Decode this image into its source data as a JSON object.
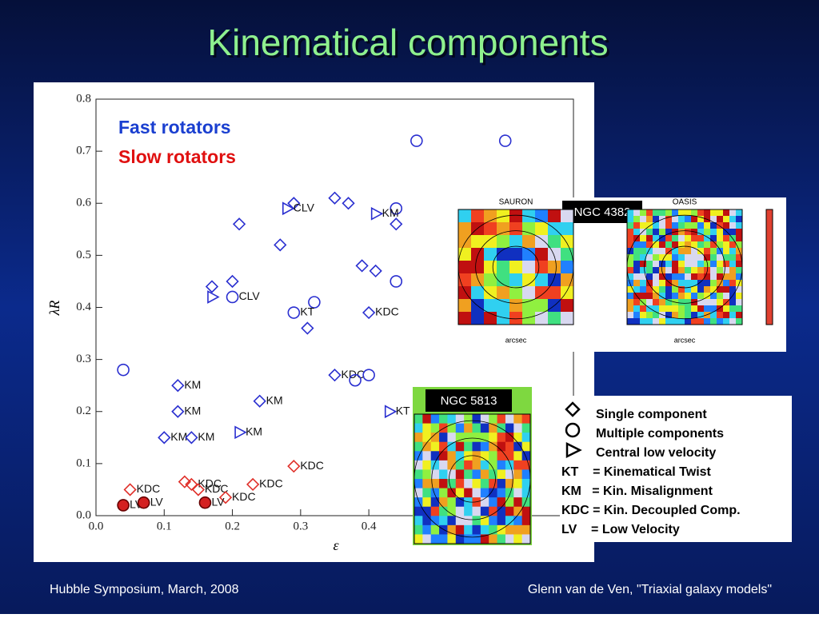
{
  "title": "Kinematical components",
  "footer": {
    "left": "Hubble Symposium, March, 2008",
    "right": "Glenn van de Ven, \"Triaxial galaxy models\""
  },
  "chart_data": {
    "type": "scatter",
    "annotations": [
      "Fast rotators",
      "Slow rotators"
    ],
    "x_label": "ε",
    "y_label": "λR",
    "xlim": [
      0,
      0.7
    ],
    "ylim": [
      0,
      0.8
    ],
    "xticks": [
      {
        "value": 0,
        "label": "0.0"
      },
      0.1,
      0.2,
      0.3,
      0.4
    ],
    "yticks": [
      {
        "value": 0,
        "label": "0.0"
      },
      0.1,
      0.2,
      0.3,
      0.4,
      0.5,
      0.6,
      0.7,
      0.8
    ],
    "series": [
      {
        "name": "Single component",
        "marker": "diamond",
        "color": "#2a2fd0",
        "filled": false,
        "x": [
          0.21,
          0.29,
          0.35,
          0.37,
          0.27,
          0.17,
          0.2,
          0.39,
          0.41,
          0.31,
          0.4,
          0.35,
          0.12,
          0.12,
          0.24,
          0.1,
          0.14,
          0.44
        ],
        "values": [
          0.56,
          0.6,
          0.61,
          0.6,
          0.52,
          0.44,
          0.45,
          0.48,
          0.47,
          0.36,
          0.39,
          0.27,
          0.25,
          0.2,
          0.22,
          0.15,
          0.15,
          0.56
        ],
        "labels": [
          null,
          null,
          null,
          null,
          null,
          null,
          null,
          null,
          null,
          null,
          "KDC",
          "KDC",
          "KM",
          "KM",
          "KM",
          "KM",
          "KM",
          null
        ]
      },
      {
        "name": "Multiple components",
        "marker": "circle",
        "color": "#2a2fd0",
        "filled": false,
        "x": [
          0.47,
          0.6,
          0.44,
          0.44,
          0.32,
          0.29,
          0.2,
          0.04,
          0.38,
          0.4
        ],
        "values": [
          0.72,
          0.72,
          0.59,
          0.45,
          0.41,
          0.39,
          0.42,
          0.28,
          0.26,
          0.27
        ],
        "labels": [
          null,
          null,
          null,
          null,
          null,
          "KT",
          "CLV",
          null,
          null,
          null
        ]
      },
      {
        "name": "Central low velocity",
        "marker": "triangle",
        "color": "#2a2fd0",
        "filled": false,
        "x": [
          0.28,
          0.41,
          0.17,
          0.43,
          0.21
        ],
        "values": [
          0.59,
          0.58,
          0.42,
          0.2,
          0.16
        ],
        "labels": [
          "CLV",
          "KM",
          null,
          "KT",
          "KM"
        ]
      },
      {
        "marker": "diamond",
        "color": "#e0302a",
        "filled": false,
        "x": [
          0.05,
          0.13,
          0.14,
          0.15,
          0.19,
          0.23,
          0.29
        ],
        "values": [
          0.05,
          0.065,
          0.06,
          0.05,
          0.035,
          0.06,
          0.095
        ],
        "labels": [
          "KDC",
          null,
          "KDC",
          "KDC",
          "KDC",
          "KDC",
          "KDC"
        ]
      },
      {
        "marker": "circle",
        "color": "#d42020",
        "filled": true,
        "x": [
          0.04,
          0.07,
          0.16
        ],
        "values": [
          0.02,
          0.025,
          0.025
        ],
        "labels": [
          "LV",
          "LV",
          "LV"
        ]
      }
    ]
  },
  "insets": {
    "ngc4382": {
      "label": "NGC 4382",
      "left": "SAURON",
      "right": "OASIS",
      "axis": "arcsec"
    },
    "ngc5813": {
      "label": "NGC 5813"
    }
  },
  "legend_box": {
    "abbrev": [
      "KT    = Kinematical Twist",
      "KM   = Kin. Misalignment",
      "KDC = Kin. Decoupled Comp.",
      "LV    = Low Velocity"
    ]
  }
}
